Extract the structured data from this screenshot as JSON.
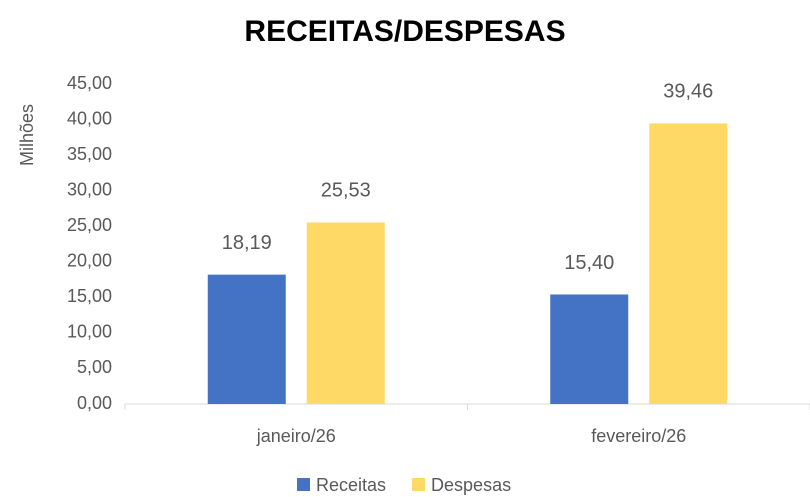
{
  "chart_data": {
    "type": "bar",
    "title": "RECEITAS/DESPESAS",
    "y_label": "Milhões",
    "categories": [
      "janeiro/26",
      "fevereiro/26"
    ],
    "series": [
      {
        "name": "Receitas",
        "color": "#4472c4",
        "values": [
          18.19,
          15.4
        ],
        "value_labels": [
          "18,19",
          "15,40"
        ]
      },
      {
        "name": "Despesas",
        "color": "#ffd966",
        "values": [
          25.53,
          39.46
        ],
        "value_labels": [
          "25,53",
          "39,46"
        ]
      }
    ],
    "ylim": [
      0,
      45
    ],
    "yticks": [
      {
        "value": 0,
        "label": "0,00"
      },
      {
        "value": 5,
        "label": "5,00"
      },
      {
        "value": 10,
        "label": "10,00"
      },
      {
        "value": 15,
        "label": "15,00"
      },
      {
        "value": 20,
        "label": "20,00"
      },
      {
        "value": 25,
        "label": "25,00"
      },
      {
        "value": 30,
        "label": "30,00"
      },
      {
        "value": 35,
        "label": "35,00"
      },
      {
        "value": 40,
        "label": "40,00"
      },
      {
        "value": 45,
        "label": "45,00"
      }
    ],
    "grid": false,
    "legend": "bottom"
  }
}
